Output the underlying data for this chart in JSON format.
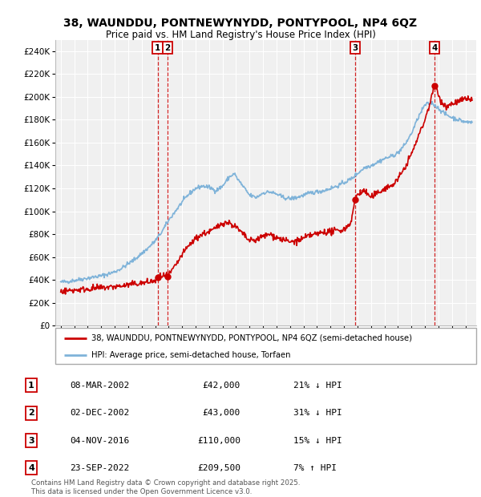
{
  "title1": "38, WAUNDDU, PONTNEWYNYDD, PONTYPOOL, NP4 6QZ",
  "title2": "Price paid vs. HM Land Registry's House Price Index (HPI)",
  "legend_line1": "38, WAUNDDU, PONTNEWYNYDD, PONTYPOOL, NP4 6QZ (semi-detached house)",
  "legend_line2": "HPI: Average price, semi-detached house, Torfaen",
  "footer1": "Contains HM Land Registry data © Crown copyright and database right 2025.",
  "footer2": "This data is licensed under the Open Government Licence v3.0.",
  "sale_color": "#cc0000",
  "hpi_color": "#7fb3d9",
  "background_color": "#ffffff",
  "plot_bg_color": "#f0f0f0",
  "grid_color": "#ffffff",
  "ylim": [
    0,
    250000
  ],
  "yticks": [
    0,
    20000,
    40000,
    60000,
    80000,
    100000,
    120000,
    140000,
    160000,
    180000,
    200000,
    220000,
    240000
  ],
  "trans_years": [
    2002.19,
    2002.92,
    2016.84,
    2022.72
  ],
  "trans_prices": [
    42000,
    43000,
    110000,
    209500
  ],
  "transactions": [
    {
      "label": "1",
      "date": "08-MAR-2002",
      "price": "£42,000",
      "pct": "21%",
      "dir": "↓"
    },
    {
      "label": "2",
      "date": "02-DEC-2002",
      "price": "£43,000",
      "pct": "31%",
      "dir": "↓"
    },
    {
      "label": "3",
      "date": "04-NOV-2016",
      "price": "£110,000",
      "pct": "15%",
      "dir": "↓"
    },
    {
      "label": "4",
      "date": "23-SEP-2022",
      "price": "£209,500",
      "pct": "7%",
      "dir": "↑"
    }
  ]
}
